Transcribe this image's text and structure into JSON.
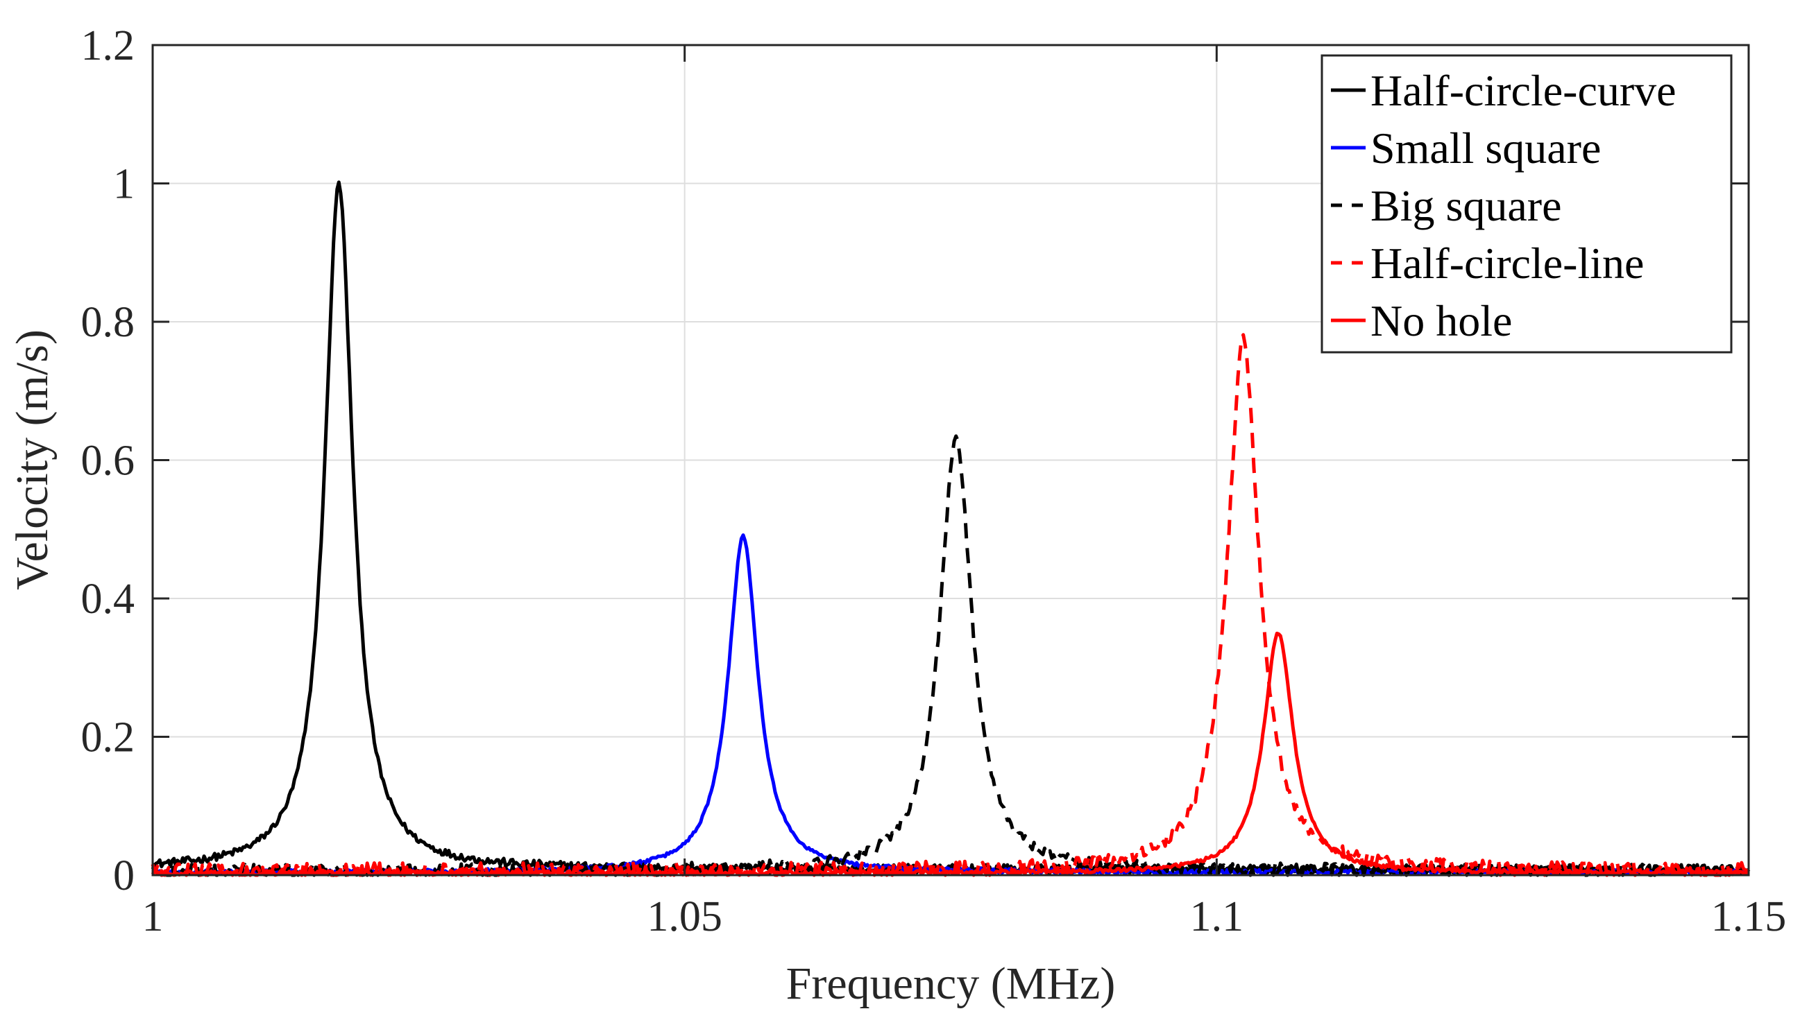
{
  "chart_data": {
    "type": "line",
    "title": "",
    "xlabel": "Frequency (MHz)",
    "ylabel": "Velocity (m/s)",
    "xlim": [
      1.0,
      1.15
    ],
    "ylim": [
      0,
      1.2
    ],
    "grid": true,
    "legend_position": "top-right",
    "x_ticks": [
      {
        "value": 1.0,
        "label": "1"
      },
      {
        "value": 1.05,
        "label": "1.05"
      },
      {
        "value": 1.1,
        "label": "1.1"
      },
      {
        "value": 1.15,
        "label": "1.15"
      }
    ],
    "y_ticks": [
      {
        "value": 0,
        "label": "0"
      },
      {
        "value": 0.2,
        "label": "0.2"
      },
      {
        "value": 0.4,
        "label": "0.4"
      },
      {
        "value": 0.6,
        "label": "0.6"
      },
      {
        "value": 0.8,
        "label": "0.8"
      },
      {
        "value": 1.0,
        "label": "1"
      },
      {
        "value": 1.2,
        "label": "1.2"
      }
    ],
    "series": [
      {
        "name": "Half-circle-curve",
        "color": "#000000",
        "style": "solid",
        "peak_x": 1.0175,
        "peak_y": 1.0,
        "half_width": 0.0016,
        "baseline": 0.008,
        "noise": 0.004
      },
      {
        "name": "Small square",
        "color": "#0000ff",
        "style": "solid",
        "peak_x": 1.0555,
        "peak_y": 0.49,
        "half_width": 0.0017,
        "baseline": 0.004,
        "noise": 0.002
      },
      {
        "name": "Big square",
        "color": "#000000",
        "style": "dashed",
        "peak_x": 1.0755,
        "peak_y": 0.635,
        "half_width": 0.0018,
        "baseline": 0.006,
        "noise": 0.006
      },
      {
        "name": "Half-circle-line",
        "color": "#ff0000",
        "style": "dashed",
        "peak_x": 1.1025,
        "peak_y": 0.775,
        "half_width": 0.0018,
        "baseline": 0.006,
        "noise": 0.007
      },
      {
        "name": "No hole",
        "color": "#ff0000",
        "style": "solid",
        "peak_x": 1.1058,
        "peak_y": 0.35,
        "half_width": 0.0017,
        "baseline": 0.003,
        "noise": 0.002
      }
    ]
  }
}
